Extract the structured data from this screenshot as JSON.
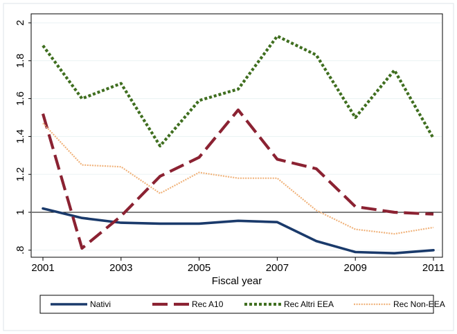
{
  "chart_data": {
    "type": "line",
    "title": "",
    "xlabel": "Fiscal year",
    "ylabel": "",
    "x": [
      2001,
      2002,
      2003,
      2004,
      2005,
      2006,
      2007,
      2008,
      2009,
      2010,
      2011
    ],
    "xticks": [
      "2001",
      "2003",
      "2005",
      "2007",
      "2009",
      "2011"
    ],
    "xlim": [
      2001,
      2011
    ],
    "yticks": [
      {
        "value": 0.8,
        "label": ".8"
      },
      {
        "value": 1.0,
        "label": "1"
      },
      {
        "value": 1.2,
        "label": "1.2"
      },
      {
        "value": 1.4,
        "label": "1.4"
      },
      {
        "value": 1.6,
        "label": "1.6"
      },
      {
        "value": 1.8,
        "label": "1.8"
      },
      {
        "value": 2.0,
        "label": "2"
      }
    ],
    "ylim": [
      0.77,
      2.0
    ],
    "reference_line": 1.0,
    "grid": "horizontal",
    "legend_position": "bottom",
    "series": [
      {
        "name": "Nativi",
        "color": "#1a3a6b",
        "style": "solid",
        "values": [
          1.02,
          0.97,
          0.945,
          0.94,
          0.94,
          0.955,
          0.948,
          0.848,
          0.79,
          0.784,
          0.8
        ]
      },
      {
        "name": "Rec A10",
        "color": "#8b2232",
        "style": "dash",
        "values": [
          1.52,
          0.81,
          0.98,
          1.19,
          1.29,
          1.54,
          1.28,
          1.23,
          1.03,
          1.0,
          0.99
        ]
      },
      {
        "name": "Rec Altri EEA",
        "color": "#3f6e1f",
        "style": "dot",
        "values": [
          1.88,
          1.6,
          1.68,
          1.35,
          1.59,
          1.65,
          1.93,
          1.83,
          1.5,
          1.75,
          1.39
        ]
      },
      {
        "name": "Rec Non-EEA",
        "color": "#f0b27a",
        "style": "fine-dot",
        "values": [
          1.47,
          1.25,
          1.24,
          1.1,
          1.21,
          1.18,
          1.18,
          1.01,
          0.91,
          0.886,
          0.92
        ]
      }
    ]
  }
}
